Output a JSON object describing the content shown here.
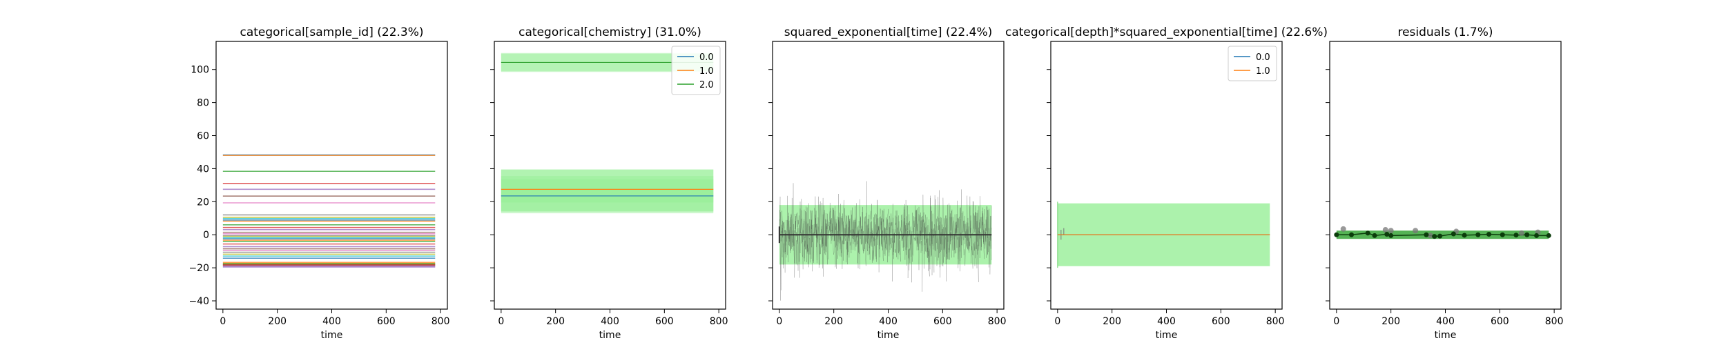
{
  "chart_data": [
    {
      "type": "line",
      "title": "categorical[sample_id] (22.3%)",
      "xlabel": "time",
      "ylabel": "",
      "xlim": [
        -25,
        825
      ],
      "ylim": [
        -45,
        117
      ],
      "xticks": [
        0,
        200,
        400,
        600,
        800
      ],
      "yticks": [
        -40,
        -20,
        0,
        20,
        40,
        60,
        80,
        100
      ],
      "grid": false,
      "x_range": [
        0,
        780
      ],
      "levels": [
        48.3,
        48.0,
        38.4,
        31.0,
        27.5,
        23.4,
        19.3,
        12.0,
        10.5,
        9.8,
        8.9,
        8.2,
        6.0,
        4.4,
        3.1,
        1.5,
        0.6,
        -0.5,
        -1.0,
        -1.8,
        -2.5,
        -3.3,
        -4.1,
        -5.6,
        -7.2,
        -8.5,
        -9.5,
        -10.6,
        -11.8,
        -12.9,
        -14.2,
        -17.0,
        -17.8,
        -18.5,
        -19.2
      ],
      "palette": [
        "#1f77b4",
        "#ff7f0e",
        "#2ca02c",
        "#d62728",
        "#9467bd",
        "#8c564b",
        "#e377c2",
        "#7f7f7f",
        "#bcbd22",
        "#17becf"
      ]
    },
    {
      "type": "line",
      "title": "categorical[chemistry] (31.0%)",
      "xlabel": "time",
      "ylabel": "",
      "xlim": [
        -25,
        825
      ],
      "ylim": [
        -45,
        117
      ],
      "xticks": [
        0,
        200,
        400,
        600,
        800
      ],
      "grid": false,
      "legend": {
        "placement": "top-right",
        "entries": [
          "0.0",
          "1.0",
          "2.0"
        ]
      },
      "series": [
        {
          "name": "0.0",
          "color": "#1f77b4",
          "mean": 23.5,
          "band_inner": [
            14.3,
            33.5
          ],
          "band_outer": [
            13.0,
            39.5
          ]
        },
        {
          "name": "1.0",
          "color": "#ff7f0e",
          "mean": 27.5,
          "band_inner": [
            19.5,
            35.5
          ],
          "band_outer": [
            14.0,
            39.5
          ]
        },
        {
          "name": "2.0",
          "color": "#2ca02c",
          "mean": 104.3,
          "band_inner": [
            99.0,
            109.5
          ],
          "band_outer": [
            98.5,
            110.0
          ]
        }
      ],
      "x_range": [
        0,
        780
      ]
    },
    {
      "type": "line",
      "title": "squared_exponential[time] (22.4%)",
      "xlabel": "time",
      "ylabel": "",
      "xlim": [
        -25,
        825
      ],
      "ylim": [
        -45,
        117
      ],
      "xticks": [
        0,
        200,
        400,
        600,
        800
      ],
      "grid": false,
      "mean": 0,
      "band": [
        -18,
        18
      ],
      "sample_spread": 18,
      "x_range": [
        0,
        780
      ]
    },
    {
      "type": "line",
      "title": "categorical[depth]*squared_exponential[time] (22.6%)",
      "xlabel": "time",
      "ylabel": "",
      "xlim": [
        -25,
        825
      ],
      "ylim": [
        -45,
        117
      ],
      "xticks": [
        0,
        200,
        400,
        600,
        800
      ],
      "grid": false,
      "legend": {
        "placement": "top-right",
        "entries": [
          "0.0",
          "1.0"
        ]
      },
      "series": [
        {
          "name": "0.0",
          "color": "#1f77b4",
          "mean": 0
        },
        {
          "name": "1.0",
          "color": "#ff7f0e",
          "mean": 0
        }
      ],
      "band": [
        -19,
        19
      ],
      "x_range": [
        0,
        780
      ]
    },
    {
      "type": "scatter",
      "title": "residuals (1.7%)",
      "xlabel": "time",
      "ylabel": "",
      "xlim": [
        -25,
        825
      ],
      "ylim": [
        -45,
        117
      ],
      "xticks": [
        0,
        200,
        400,
        600,
        800
      ],
      "grid": false,
      "band": [
        -2.5,
        2.5
      ],
      "points_dark": [
        [
          0,
          0
        ],
        [
          55,
          0
        ],
        [
          115,
          1
        ],
        [
          140,
          -0.5
        ],
        [
          185,
          0.3
        ],
        [
          200,
          -0.5
        ],
        [
          330,
          0
        ],
        [
          360,
          -1
        ],
        [
          380,
          -0.8
        ],
        [
          430,
          0.5
        ],
        [
          470,
          -0.3
        ],
        [
          520,
          0
        ],
        [
          560,
          0.3
        ],
        [
          610,
          0
        ],
        [
          660,
          -0.2
        ],
        [
          700,
          0
        ],
        [
          735,
          -0.5
        ],
        [
          780,
          -0.5
        ]
      ],
      "points_grey": [
        [
          25,
          3.5
        ],
        [
          180,
          3
        ],
        [
          200,
          2.5
        ],
        [
          290,
          2.5
        ],
        [
          345,
          -0.5
        ],
        [
          440,
          2
        ],
        [
          680,
          1
        ],
        [
          740,
          1.5
        ]
      ]
    }
  ]
}
